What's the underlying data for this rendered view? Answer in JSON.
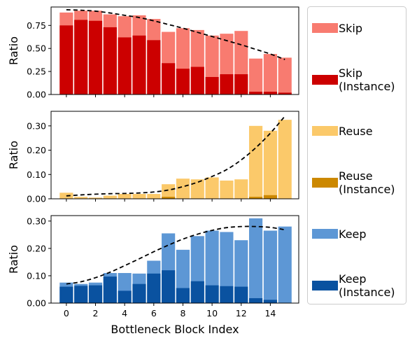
{
  "chart_data": {
    "type": "bar",
    "x": [
      0,
      1,
      2,
      3,
      4,
      5,
      6,
      7,
      8,
      9,
      10,
      11,
      12,
      13,
      14,
      15
    ],
    "xlabel": "Bottleneck Block Index",
    "xticks": [
      "0",
      "2",
      "4",
      "6",
      "8",
      "10",
      "12",
      "14"
    ],
    "panels": [
      {
        "ylabel": "Ratio",
        "ylim": [
          0,
          0.95
        ],
        "yticks": [
          "0.00",
          "0.25",
          "0.50",
          "0.75"
        ],
        "series": [
          {
            "name": "Skip",
            "color": "#F87B70",
            "values": [
              0.89,
              0.91,
              0.91,
              0.87,
              0.85,
              0.86,
              0.82,
              0.68,
              0.72,
              0.7,
              0.64,
              0.66,
              0.69,
              0.39,
              0.44,
              0.4
            ]
          },
          {
            "name": "Skip\n(Instance)",
            "color": "#CC0000",
            "values": [
              0.75,
              0.81,
              0.8,
              0.73,
              0.62,
              0.64,
              0.59,
              0.34,
              0.28,
              0.3,
              0.19,
              0.22,
              0.22,
              0.03,
              0.03,
              0.02
            ]
          }
        ],
        "trend": [
          0.92,
          0.915,
          0.905,
          0.885,
          0.86,
          0.835,
          0.8,
          0.76,
          0.72,
          0.675,
          0.63,
          0.585,
          0.54,
          0.49,
          0.44,
          0.38
        ]
      },
      {
        "ylabel": "Ratio",
        "ylim": [
          0,
          0.36
        ],
        "yticks": [
          "0.00",
          "0.10",
          "0.20",
          "0.30"
        ],
        "series": [
          {
            "name": "Reuse",
            "color": "#FBC96A",
            "values": [
              0.025,
              0.008,
              0.005,
              0.013,
              0.02,
              0.02,
              0.02,
              0.06,
              0.083,
              0.08,
              0.088,
              0.075,
              0.08,
              0.3,
              0.28,
              0.325
            ]
          },
          {
            "name": "Reuse\n(Instance)",
            "color": "#CC8800",
            "values": [
              0,
              0,
              0,
              0,
              0,
              0,
              0,
              0.008,
              0,
              0,
              0,
              0,
              0,
              0.008,
              0.015,
              0
            ]
          }
        ],
        "trend": [
          0.012,
          0.016,
          0.019,
          0.021,
          0.022,
          0.024,
          0.028,
          0.036,
          0.05,
          0.068,
          0.092,
          0.12,
          0.16,
          0.21,
          0.27,
          0.34
        ]
      },
      {
        "ylabel": "Ratio",
        "ylim": [
          0,
          0.32
        ],
        "yticks": [
          "0.00",
          "0.10",
          "0.20",
          "0.30"
        ],
        "series": [
          {
            "name": "Keep",
            "color": "#5D97D5",
            "values": [
              0.075,
              0.07,
              0.075,
              0.11,
              0.11,
              0.108,
              0.155,
              0.255,
              0.195,
              0.245,
              0.265,
              0.26,
              0.23,
              0.31,
              0.265,
              0.28
            ]
          },
          {
            "name": "Keep\n(Instance)",
            "color": "#0A52A0",
            "values": [
              0.06,
              0.063,
              0.065,
              0.097,
              0.045,
              0.07,
              0.108,
              0.12,
              0.055,
              0.08,
              0.065,
              0.062,
              0.06,
              0.018,
              0.012,
              0.0
            ]
          }
        ],
        "trend": [
          0.07,
          0.078,
          0.093,
          0.113,
          0.137,
          0.162,
          0.188,
          0.212,
          0.234,
          0.252,
          0.266,
          0.276,
          0.28,
          0.28,
          0.277,
          0.268
        ]
      }
    ],
    "legend": [
      "Skip",
      "Skip\n(Instance)",
      "Reuse",
      "Reuse\n(Instance)",
      "Keep",
      "Keep\n(Instance)"
    ],
    "legend_position": "right",
    "grid": false
  }
}
